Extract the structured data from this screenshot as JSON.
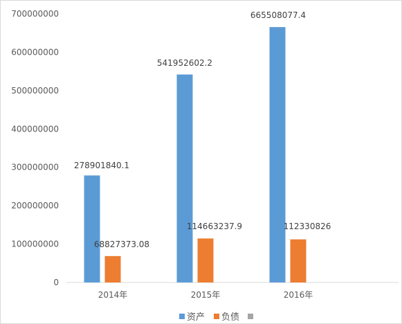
{
  "chart_data": {
    "type": "bar",
    "categories": [
      "2014年",
      "2015年",
      "2016年"
    ],
    "series": [
      {
        "name": "资产",
        "color": "#5b9bd5",
        "values": [
          278901840.1,
          541952602.2,
          665508077.4
        ],
        "labels": [
          "278901840.1",
          "541952602.2",
          "665508077.4"
        ]
      },
      {
        "name": "负债",
        "color": "#ed7d31",
        "values": [
          68827373.08,
          114663237.9,
          112330826
        ],
        "labels": [
          "68827373.08",
          "114663237.9",
          "112330826"
        ]
      },
      {
        "name": "",
        "color": "#a5a5a5",
        "values": [
          null,
          null,
          null
        ],
        "labels": [
          "",
          "",
          ""
        ]
      }
    ],
    "y_ticks": [
      "0",
      "100000000",
      "200000000",
      "300000000",
      "400000000",
      "500000000",
      "600000000",
      "700000000"
    ],
    "ylim": [
      0,
      700000000
    ],
    "title": "",
    "xlabel": "",
    "ylabel": "",
    "legend_position": "bottom",
    "grid": false
  }
}
